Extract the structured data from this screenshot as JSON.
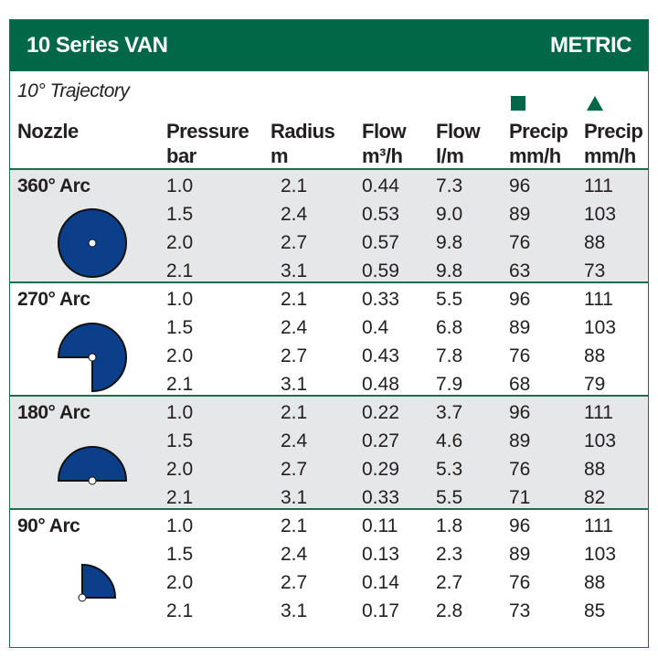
{
  "header": {
    "title": "10 Series VAN",
    "units": "METRIC"
  },
  "trajectory": "10° Trajectory",
  "columns": {
    "nozzle": "Nozzle",
    "pressure": [
      "Pressure",
      "bar"
    ],
    "radius": [
      "Radius",
      "m"
    ],
    "flow_m3": [
      "Flow",
      "m³/h"
    ],
    "flow_lm": [
      "Flow",
      "l/m"
    ],
    "precip_square": [
      "Precip",
      "mm/h"
    ],
    "precip_triangle": [
      "Precip",
      "mm/h"
    ]
  },
  "legend_marks": {
    "square": "square-spacing",
    "triangle": "triangle-spacing"
  },
  "colors": {
    "banner": "#006847",
    "nozzle_fill": "#0b3f8a",
    "shade": "#e6e7e8"
  },
  "groups": [
    {
      "arc": "360° Arc",
      "icon": "circle-360",
      "rows": [
        [
          "1.0",
          "2.1",
          "0.44",
          "7.3",
          "96",
          "111"
        ],
        [
          "1.5",
          "2.4",
          "0.53",
          "9.0",
          "89",
          "103"
        ],
        [
          "2.0",
          "2.7",
          "0.57",
          "9.8",
          "76",
          "88"
        ],
        [
          "2.1",
          "3.1",
          "0.59",
          "9.8",
          "63",
          "73"
        ]
      ]
    },
    {
      "arc": "270° Arc",
      "icon": "three-quarter-circle",
      "rows": [
        [
          "1.0",
          "2.1",
          "0.33",
          "5.5",
          "96",
          "111"
        ],
        [
          "1.5",
          "2.4",
          "0.4",
          "6.8",
          "89",
          "103"
        ],
        [
          "2.0",
          "2.7",
          "0.43",
          "7.8",
          "76",
          "88"
        ],
        [
          "2.1",
          "3.1",
          "0.48",
          "7.9",
          "68",
          "79"
        ]
      ]
    },
    {
      "arc": "180° Arc",
      "icon": "half-circle",
      "rows": [
        [
          "1.0",
          "2.1",
          "0.22",
          "3.7",
          "96",
          "111"
        ],
        [
          "1.5",
          "2.4",
          "0.27",
          "4.6",
          "89",
          "103"
        ],
        [
          "2.0",
          "2.7",
          "0.29",
          "5.3",
          "76",
          "88"
        ],
        [
          "2.1",
          "3.1",
          "0.33",
          "5.5",
          "71",
          "82"
        ]
      ]
    },
    {
      "arc": "90° Arc",
      "icon": "quarter-circle",
      "rows": [
        [
          "1.0",
          "2.1",
          "0.11",
          "1.8",
          "96",
          "111"
        ],
        [
          "1.5",
          "2.4",
          "0.13",
          "2.3",
          "89",
          "103"
        ],
        [
          "2.0",
          "2.7",
          "0.14",
          "2.7",
          "76",
          "88"
        ],
        [
          "2.1",
          "3.1",
          "0.17",
          "2.8",
          "73",
          "85"
        ]
      ]
    }
  ]
}
